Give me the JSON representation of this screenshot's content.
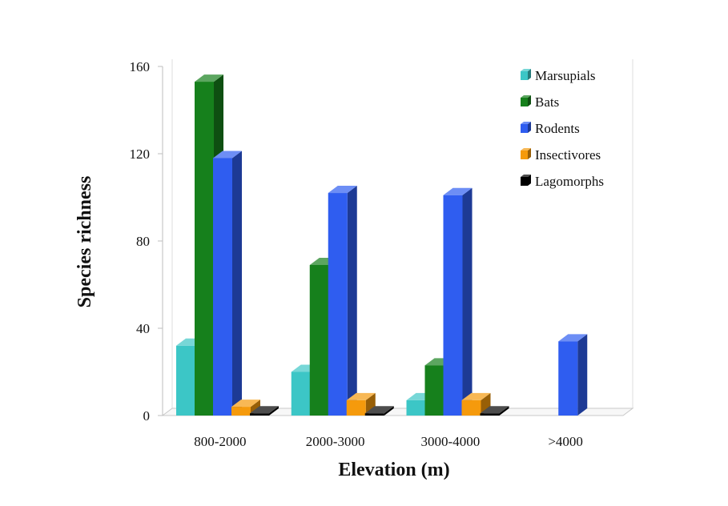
{
  "chart_data": {
    "type": "bar",
    "title": "",
    "xlabel": "Elevation (m)",
    "ylabel": "Species richness",
    "categories": [
      "800-2000",
      "2000-3000",
      "3000-4000",
      ">4000"
    ],
    "ylim": [
      0,
      160
    ],
    "yticks": [
      "0",
      "40",
      "80",
      "120",
      "160"
    ],
    "ytick_values": [
      0,
      40,
      80,
      120,
      160
    ],
    "grid": false,
    "legend_position": "top-right",
    "series": [
      {
        "name": "Marsupials",
        "values": [
          32,
          20,
          7,
          0
        ],
        "color": "#3cc6c6"
      },
      {
        "name": "Bats",
        "values": [
          153,
          69,
          23,
          0
        ],
        "color": "#16801c"
      },
      {
        "name": "Rodents",
        "values": [
          118,
          102,
          101,
          34
        ],
        "color": "#2f5df0"
      },
      {
        "name": "Insectivores",
        "values": [
          4,
          7,
          7,
          0
        ],
        "color": "#f59a0c"
      },
      {
        "name": "Lagomorphs",
        "values": [
          1,
          1,
          1,
          0
        ],
        "color": "#000000"
      }
    ]
  }
}
